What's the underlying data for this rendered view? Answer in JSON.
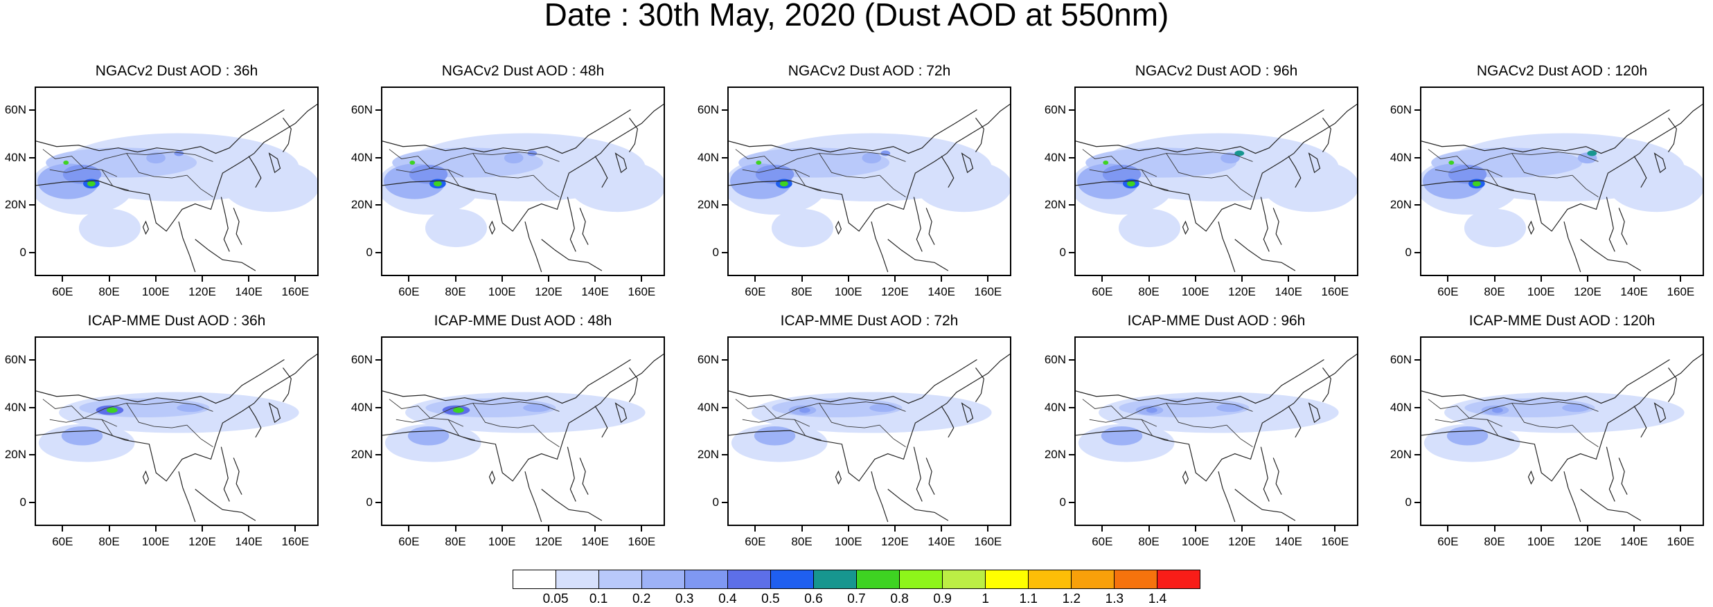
{
  "title": "Date : 30th May, 2020 (Dust AOD at 550nm)",
  "lat_ticks": [
    "60N",
    "40N",
    "20N",
    "0"
  ],
  "lon_ticks": [
    "60E",
    "80E",
    "100E",
    "120E",
    "140E",
    "160E"
  ],
  "panels": [
    {
      "title": "NGACv2 Dust AOD : 36h",
      "model": "NGACv2",
      "lead": "36h"
    },
    {
      "title": "NGACv2 Dust AOD : 48h",
      "model": "NGACv2",
      "lead": "48h"
    },
    {
      "title": "NGACv2 Dust AOD : 72h",
      "model": "NGACv2",
      "lead": "72h"
    },
    {
      "title": "NGACv2 Dust AOD : 96h",
      "model": "NGACv2",
      "lead": "96h"
    },
    {
      "title": "NGACv2 Dust AOD : 120h",
      "model": "NGACv2",
      "lead": "120h"
    },
    {
      "title": "ICAP-MME Dust AOD : 36h",
      "model": "ICAP-MME",
      "lead": "36h"
    },
    {
      "title": "ICAP-MME Dust AOD : 48h",
      "model": "ICAP-MME",
      "lead": "48h"
    },
    {
      "title": "ICAP-MME Dust AOD : 72h",
      "model": "ICAP-MME",
      "lead": "72h"
    },
    {
      "title": "ICAP-MME Dust AOD : 96h",
      "model": "ICAP-MME",
      "lead": "96h"
    },
    {
      "title": "ICAP-MME Dust AOD : 120h",
      "model": "ICAP-MME",
      "lead": "120h"
    }
  ],
  "colorbar": {
    "labels": [
      "0.05",
      "0.1",
      "0.2",
      "0.3",
      "0.4",
      "0.5",
      "0.6",
      "0.7",
      "0.8",
      "0.9",
      "1",
      "1.1",
      "1.2",
      "1.3",
      "1.4"
    ],
    "colors": [
      "#ffffff",
      "#d6e0fc",
      "#b9c9fa",
      "#9db2f7",
      "#7f98f2",
      "#5d6fe8",
      "#1f5ff0",
      "#17968f",
      "#3ed322",
      "#8ef51a",
      "#bcee45",
      "#ffff00",
      "#fdbe07",
      "#f8a00a",
      "#f6730d",
      "#f81d18"
    ]
  },
  "chart_data": {
    "type": "heatmap",
    "title": "Date : 30th May, 2020 (Dust AOD at 550nm)",
    "x_axis": {
      "ticks": [
        "60E",
        "80E",
        "100E",
        "120E",
        "140E",
        "160E"
      ],
      "range_deg": [
        48,
        170
      ]
    },
    "y_axis": {
      "ticks": [
        "60N",
        "40N",
        "20N",
        "0"
      ],
      "range_deg": [
        -10,
        70
      ]
    },
    "levels": [
      0.05,
      0.1,
      0.2,
      0.3,
      0.4,
      0.5,
      0.6,
      0.7,
      0.8,
      0.9,
      1,
      1.1,
      1.2,
      1.3,
      1.4
    ],
    "panels": [
      "NGACv2 Dust AOD : 36h",
      "NGACv2 Dust AOD : 48h",
      "NGACv2 Dust AOD : 72h",
      "NGACv2 Dust AOD : 96h",
      "NGACv2 Dust AOD : 120h",
      "ICAP-MME Dust AOD : 36h",
      "ICAP-MME Dust AOD : 48h",
      "ICAP-MME Dust AOD : 72h",
      "ICAP-MME Dust AOD : 96h",
      "ICAP-MME Dust AOD : 120h"
    ]
  }
}
